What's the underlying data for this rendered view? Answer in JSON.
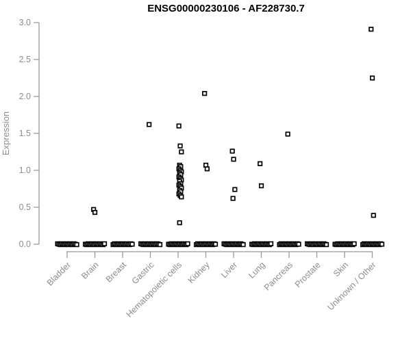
{
  "title": "ENSG00000230106 - AF228730.7",
  "colors": {
    "title": "#000000",
    "axis_line": "#999999",
    "tick_label": "#8c8c8c",
    "axis_label": "#8c8c8c",
    "marker_stroke": "#000000",
    "marker_fill": "#ffffff",
    "background": "#ffffff"
  },
  "chart_data": {
    "type": "scatter",
    "variant": "strip-plot-jittered",
    "title": "ENSG00000230106 - AF228730.7",
    "xlabel": "",
    "ylabel": "Expression",
    "ylim": [
      0.0,
      3.0
    ],
    "yticks": [
      "0.0",
      "0.5",
      "1.0",
      "1.5",
      "2.0",
      "2.5",
      "3.0"
    ],
    "grid": false,
    "legend_position": "none",
    "marker_shape": "open-square",
    "categories": [
      "Bladder",
      "Brain",
      "Breast",
      "Gastric",
      "Hematopoietic cells",
      "Kidney",
      "Liver",
      "Lung",
      "Pancreas",
      "Prostate",
      "Skin",
      "Unknown / Other"
    ],
    "series": [
      {
        "category": "Bladder",
        "nonzero_values": [],
        "zero_cluster": true
      },
      {
        "category": "Brain",
        "nonzero_values": [
          0.47,
          0.43
        ],
        "zero_cluster": true
      },
      {
        "category": "Breast",
        "nonzero_values": [],
        "zero_cluster": true
      },
      {
        "category": "Gastric",
        "nonzero_values": [
          1.62
        ],
        "zero_cluster": true
      },
      {
        "category": "Hematopoietic cells",
        "nonzero_values": [
          1.6,
          1.33,
          1.25,
          1.07,
          1.05,
          1.02,
          1.0,
          0.98,
          0.96,
          0.94,
          0.91,
          0.89,
          0.87,
          0.85,
          0.82,
          0.8,
          0.78,
          0.76,
          0.73,
          0.71,
          0.68,
          0.66,
          0.64,
          0.29
        ],
        "zero_cluster": true
      },
      {
        "category": "Kidney",
        "nonzero_values": [
          2.04,
          1.07,
          1.02
        ],
        "zero_cluster": true
      },
      {
        "category": "Liver",
        "nonzero_values": [
          1.26,
          1.15,
          0.74,
          0.62
        ],
        "zero_cluster": true
      },
      {
        "category": "Lung",
        "nonzero_values": [
          1.09,
          0.79
        ],
        "zero_cluster": true
      },
      {
        "category": "Pancreas",
        "nonzero_values": [
          1.49
        ],
        "zero_cluster": true
      },
      {
        "category": "Prostate",
        "nonzero_values": [],
        "zero_cluster": true
      },
      {
        "category": "Skin",
        "nonzero_values": [],
        "zero_cluster": true
      },
      {
        "category": "Unknown / Other",
        "nonzero_values": [
          2.91,
          2.25,
          0.39
        ],
        "zero_cluster": true
      }
    ]
  }
}
